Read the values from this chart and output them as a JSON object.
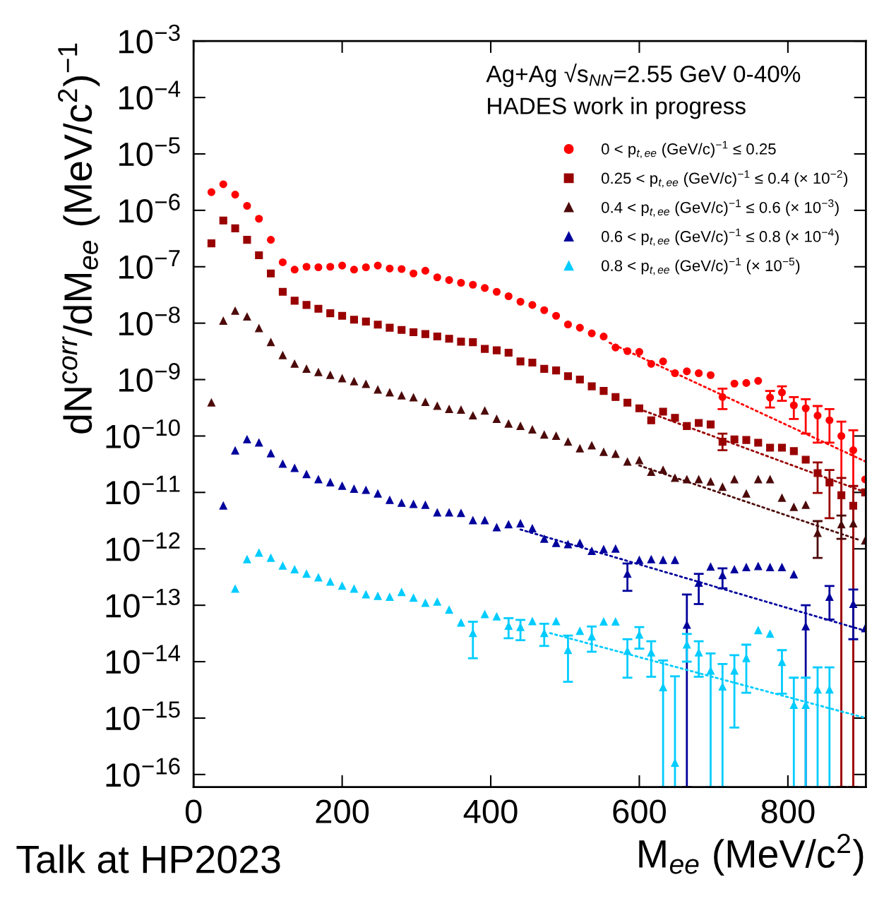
{
  "chart_data": {
    "type": "scatter",
    "xlabel": "M$_{ee}$ (MeV/c$^{2}$)",
    "ylabel": "dN$^{corr}$/dM$_{ee}$ (MeV/c$^{2}$)$^{−1}$",
    "annotations": [
      "Ag+Ag √s$_{NN}$=2.55 GeV 0-40%",
      "HADES work in progress",
      "Talk at HP2023"
    ],
    "xlim": [
      0,
      905
    ],
    "xticks": [
      0,
      200,
      400,
      600,
      800
    ],
    "ylim": [
      6e-17,
      0.001
    ],
    "log": "y",
    "yticks": [
      {
        "value": 0.001,
        "label": "10$^{−3}$"
      },
      {
        "value": 0.0001,
        "label": "10$^{−4}$"
      },
      {
        "value": 1e-05,
        "label": "10$^{−5}$"
      },
      {
        "value": 1e-06,
        "label": "10$^{−6}$"
      },
      {
        "value": 1e-07,
        "label": "10$^{−7}$"
      },
      {
        "value": 1e-08,
        "label": "10$^{−8}$"
      },
      {
        "value": 1e-09,
        "label": "10$^{−9}$"
      },
      {
        "value": 1e-10,
        "label": "10$^{−10}$"
      },
      {
        "value": 1e-11,
        "label": "10$^{−11}$"
      },
      {
        "value": 1e-12,
        "label": "10$^{−12}$"
      },
      {
        "value": 1e-13,
        "label": "10$^{−13}$"
      },
      {
        "value": 1e-14,
        "label": "10$^{−14}$"
      },
      {
        "value": 1e-15,
        "label": "10$^{−15}$"
      },
      {
        "value": 1e-16,
        "label": "10$^{−16}$"
      }
    ],
    "legend": "top right",
    "x": [
      24,
      40,
      56,
      72,
      88,
      104,
      120,
      136,
      152,
      168,
      184,
      200,
      216,
      232,
      248,
      264,
      280,
      296,
      312,
      328,
      344,
      360,
      376,
      392,
      408,
      424,
      440,
      456,
      472,
      488,
      504,
      520,
      536,
      552,
      568,
      584,
      600,
      616,
      632,
      648,
      664,
      680,
      696,
      712,
      728,
      744,
      760,
      776,
      792,
      808,
      824,
      840,
      856,
      872,
      888,
      904
    ],
    "series": [
      {
        "name": "0 < p$_{t,ee}$ (GeV/c)$^{−1}$ ≤ 0.25",
        "color": "#ff0000",
        "marker": "circle",
        "values": [
          2.1e-06,
          2.9e-06,
          1.9e-06,
          1.2e-06,
          7.1e-07,
          3e-07,
          1.2e-07,
          8.9e-08,
          1e-07,
          9.8e-08,
          1e-07,
          1.05e-07,
          8.9e-08,
          9.8e-08,
          1.05e-07,
          9.3e-08,
          9.1e-08,
          7.6e-08,
          8.5e-08,
          6.5e-08,
          5.8e-08,
          5.2e-08,
          4.8e-08,
          4.2e-08,
          3.6e-08,
          3e-08,
          2.4e-08,
          2.1e-08,
          1.7e-08,
          1.35e-08,
          9.5e-09,
          8.3e-09,
          6.6e-09,
          5.8e-09,
          3.7e-09,
          3.2e-09,
          3.1e-09,
          1.9e-09,
          2.1e-09,
          1.3e-09,
          1.4e-09,
          1.3e-09,
          1.2e-09,
          4.9e-10,
          8.5e-10,
          8.7e-10,
          9.5e-10,
          4.8e-10,
          5.9e-10,
          3.5e-10,
          3.1e-10,
          2.3e-10,
          1.9e-10,
          1e-10,
          5.6e-11,
          1.7e-11
        ],
        "errors": [
          null,
          null,
          null,
          null,
          null,
          null,
          null,
          null,
          null,
          null,
          null,
          null,
          null,
          null,
          null,
          null,
          null,
          null,
          null,
          null,
          null,
          null,
          null,
          null,
          null,
          null,
          null,
          null,
          null,
          null,
          null,
          null,
          null,
          null,
          null,
          null,
          null,
          null,
          null,
          null,
          null,
          null,
          null,
          [
            3e-10,
            6.9e-10
          ],
          null,
          null,
          null,
          [
            3.2e-10,
            6.3e-10
          ],
          [
            4.2e-10,
            7.6e-10
          ],
          [
            2e-10,
            4.9e-10
          ],
          [
            1.1e-10,
            4.5e-10
          ],
          [
            7.6e-11,
            3.4e-10
          ],
          [
            7.6e-11,
            3e-10
          ],
          [
            6e-17,
            1.8e-10
          ],
          [
            6e-17,
            1.26e-10
          ],
          null
        ]
      },
      {
        "name": "0.25 < p$_{t,ee}$ (GeV/c)$^{−1}$ ≤ 0.4 (× 10$^{−2}$)",
        "color": "#990000",
        "marker": "square",
        "values": [
          2.6e-07,
          6.6e-07,
          4.8e-07,
          3e-07,
          1.6e-07,
          7.6e-08,
          3.6e-08,
          2.5e-08,
          2.1e-08,
          1.8e-08,
          1.5e-08,
          1.35e-08,
          1.15e-08,
          1.07e-08,
          9.4e-09,
          8.3e-09,
          7.6e-09,
          6.9e-09,
          6.4e-09,
          5.8e-09,
          5.3e-09,
          4.7e-09,
          4.6e-09,
          3.5e-09,
          3.3e-09,
          3e-09,
          2.1e-09,
          2e-09,
          1.55e-09,
          1.45e-09,
          1.15e-09,
          1e-09,
          7.6e-10,
          6.3e-10,
          4.9e-10,
          3.9e-10,
          3.1e-10,
          1.9e-10,
          2.7e-10,
          2.1e-10,
          1.5e-10,
          1.7e-10,
          1.6e-10,
          7.9e-11,
          8.7e-11,
          8.5e-11,
          7.6e-11,
          6.2e-11,
          6.2e-11,
          5.4e-11,
          3.8e-11,
          2.2e-11,
          1.5e-11,
          8.9e-12,
          5.8e-12,
          1e-11
        ],
        "errors": [
          null,
          null,
          null,
          null,
          null,
          null,
          null,
          null,
          null,
          null,
          null,
          null,
          null,
          null,
          null,
          null,
          null,
          null,
          null,
          null,
          null,
          null,
          null,
          null,
          null,
          null,
          null,
          null,
          null,
          null,
          null,
          null,
          null,
          null,
          null,
          null,
          null,
          null,
          null,
          null,
          null,
          null,
          null,
          [
            5.6e-11,
            1.1e-10
          ],
          null,
          null,
          null,
          null,
          null,
          null,
          null,
          [
            9.8e-12,
            3.4e-11
          ],
          [
            3.5e-12,
            2.5e-11
          ],
          [
            6e-17,
            1.8e-11
          ],
          [
            6e-17,
            1.3e-11
          ],
          null
        ]
      },
      {
        "name": "0.4 < p$_{t,ee}$ (GeV/c)$^{−1}$ ≤ 0.6 (× 10$^{−3}$)",
        "color": "#4d0a0a",
        "marker": "triangle",
        "values": [
          3.9e-10,
          1.1e-08,
          1.65e-08,
          1.3e-08,
          8.1e-09,
          4.6e-09,
          2.7e-09,
          1.9e-09,
          1.55e-09,
          1.35e-09,
          1.2e-09,
          1.05e-09,
          9.3e-10,
          8.3e-10,
          6.6e-10,
          5.9e-10,
          5.2e-10,
          4.8e-10,
          4e-10,
          3.4e-10,
          3e-10,
          2.9e-10,
          2.3e-10,
          2.8e-10,
          2e-10,
          1.65e-10,
          1.5e-10,
          1.3e-10,
          1.05e-10,
          1e-10,
          7.9e-11,
          6e-11,
          6.8e-11,
          5.2e-11,
          4.8e-11,
          3.5e-11,
          3.7e-11,
          2.3e-11,
          2.5e-11,
          1.8e-11,
          1.7e-11,
          1.7e-11,
          1.55e-11,
          1.25e-11,
          1.7e-11,
          9.5e-12,
          1.7e-11,
          1.7e-11,
          8e-12,
          5.5e-12,
          6e-12,
          1.9e-12,
          null,
          2.7e-12,
          2.8e-12,
          1.4e-12
        ],
        "errors": [
          null,
          null,
          null,
          null,
          null,
          null,
          null,
          null,
          null,
          null,
          null,
          null,
          null,
          null,
          null,
          null,
          null,
          null,
          null,
          null,
          null,
          null,
          null,
          null,
          null,
          null,
          null,
          null,
          null,
          null,
          null,
          null,
          null,
          null,
          null,
          null,
          null,
          null,
          null,
          null,
          null,
          null,
          null,
          null,
          null,
          null,
          null,
          null,
          null,
          null,
          null,
          [
            6.9e-13,
            3.1e-12
          ],
          null,
          [
            1.5e-12,
            3.9e-12
          ],
          null,
          null
        ]
      },
      {
        "name": "0.6 < p$_{t,ee}$ (GeV/c)$^{−1}$ ≤ 0.8 (× 10$^{−4}$)",
        "color": "#00009c",
        "marker": "triangle",
        "values": [
          null,
          5.8e-12,
          5.5e-11,
          8.7e-11,
          7.6e-11,
          4.9e-11,
          3.2e-11,
          2.7e-11,
          2.1e-11,
          1.7e-11,
          1.5e-11,
          1.3e-11,
          1.15e-11,
          1.1e-11,
          9.5e-12,
          7.3e-12,
          6.5e-12,
          6.2e-12,
          6e-12,
          4.4e-12,
          4.4e-12,
          4.3e-12,
          3.2e-12,
          3.2e-12,
          2.4e-12,
          2.7e-12,
          2.8e-12,
          2.3e-12,
          1.5e-12,
          1.26e-12,
          1.2e-12,
          1.26e-12,
          9.1e-13,
          9.8e-13,
          1e-12,
          3.6e-13,
          6.3e-13,
          6.5e-13,
          6.3e-13,
          6.3e-13,
          4.5e-14,
          2.5e-13,
          4.8e-13,
          3.4e-13,
          4.3e-13,
          4.7e-13,
          4.9e-13,
          4.7e-13,
          4.7e-13,
          3.5e-13,
          4.2e-14,
          null,
          1.4e-13,
          null,
          1.05e-13,
          3.9e-14
        ],
        "errors": [
          null,
          null,
          null,
          null,
          null,
          null,
          null,
          null,
          null,
          null,
          null,
          null,
          null,
          null,
          null,
          null,
          null,
          null,
          null,
          null,
          null,
          null,
          null,
          null,
          null,
          null,
          null,
          null,
          null,
          null,
          null,
          null,
          null,
          null,
          null,
          [
            1.8e-13,
            5.5e-13
          ],
          null,
          null,
          null,
          null,
          [
            6e-17,
            1.55e-13
          ],
          [
            1.05e-13,
            3.6e-13
          ],
          null,
          [
            2e-13,
            4.5e-13
          ],
          null,
          null,
          null,
          null,
          null,
          null,
          [
            6e-17,
            1e-13
          ],
          null,
          [
            5.6e-14,
            2.2e-13
          ],
          null,
          [
            2.5e-14,
            1.9e-13
          ],
          null
        ]
      },
      {
        "name": "0.8 < p$_{t,ee}$ (GeV/c)$^{−1}$ (× 10$^{−5}$)",
        "color": "#00ccff",
        "marker": "triangle",
        "values": [
          null,
          null,
          1.95e-13,
          6.5e-13,
          8.5e-13,
          6.9e-13,
          5e-13,
          4.3e-13,
          3.6e-13,
          3.1e-13,
          2.6e-13,
          2.2e-13,
          1.95e-13,
          1.55e-13,
          1.45e-13,
          1.4e-13,
          1.7e-13,
          1.35e-13,
          1.1e-13,
          1.15e-13,
          8.3e-14,
          4.9e-14,
          3.2e-14,
          6.9e-14,
          6.3e-14,
          4.3e-14,
          4.1e-14,
          5.2e-14,
          3.2e-14,
          5.2e-14,
          1.6e-14,
          3.5e-14,
          2.8e-14,
          5.1e-14,
          5.1e-14,
          1.55e-14,
          3e-14,
          1.45e-14,
          3.5e-15,
          1.6e-16,
          2e-14,
          1.45e-14,
          6.9e-15,
          3.6e-15,
          6.9e-15,
          1.15e-14,
          3.6e-14,
          3.1e-14,
          9.8e-15,
          1.7e-15,
          1.7e-15,
          3.2e-15,
          3.2e-15,
          null,
          null,
          null
        ],
        "errors": [
          null,
          null,
          null,
          null,
          null,
          null,
          null,
          null,
          null,
          null,
          null,
          null,
          null,
          null,
          null,
          null,
          null,
          null,
          null,
          null,
          null,
          null,
          [
            1.15e-14,
            5.1e-14
          ],
          null,
          null,
          [
            2.6e-14,
            5.9e-14
          ],
          [
            2.4e-14,
            5.5e-14
          ],
          null,
          [
            1.9e-14,
            4.7e-14
          ],
          null,
          [
            4.4e-15,
            2.9e-14
          ],
          null,
          [
            1.5e-14,
            4.2e-14
          ],
          null,
          null,
          [
            5.2e-15,
            2.5e-14
          ],
          [
            1.7e-14,
            4.1e-14
          ],
          [
            5.4e-15,
            2.3e-14
          ],
          [
            6e-17,
            1.05e-14
          ],
          [
            6e-17,
            5.5e-15
          ],
          [
            1e-14,
            3.1e-14
          ],
          [
            5.4e-15,
            2.3e-14
          ],
          [
            6e-17,
            1.4e-14
          ],
          [
            6e-17,
            9.1e-15
          ],
          [
            6.8e-16,
            1.3e-14
          ],
          [
            2.8e-15,
            2e-14
          ],
          null,
          null,
          [
            2.7e-15,
            1.6e-14
          ],
          [
            6e-17,
            5.2e-15
          ],
          [
            6e-17,
            5.2e-15
          ],
          [
            6e-17,
            7.9e-15
          ],
          [
            6e-17,
            7.9e-15
          ],
          null,
          null,
          null
        ]
      },
      {
        "type": "line",
        "line_style": "dotted",
        "color": "#ff0000",
        "x": [
          560,
          905
        ],
        "values": [
          4.5e-09,
          3.5e-11
        ]
      },
      {
        "type": "line",
        "line_style": "dotted",
        "color": "#990000",
        "x": [
          600,
          905
        ],
        "values": [
          3e-10,
          1e-11
        ]
      },
      {
        "type": "line",
        "line_style": "dotted",
        "color": "#4d0a0a",
        "x": [
          600,
          895
        ],
        "values": [
          3e-11,
          1.45e-12
        ]
      },
      {
        "type": "line",
        "line_style": "dotted",
        "color": "#00009c",
        "x": [
          440,
          905
        ],
        "values": [
          2.2e-12,
          3.5e-14
        ]
      },
      {
        "type": "line",
        "line_style": "dotted",
        "color": "#00ccff",
        "x": [
          480,
          905
        ],
        "values": [
          3.2e-14,
          1e-15
        ]
      }
    ]
  }
}
